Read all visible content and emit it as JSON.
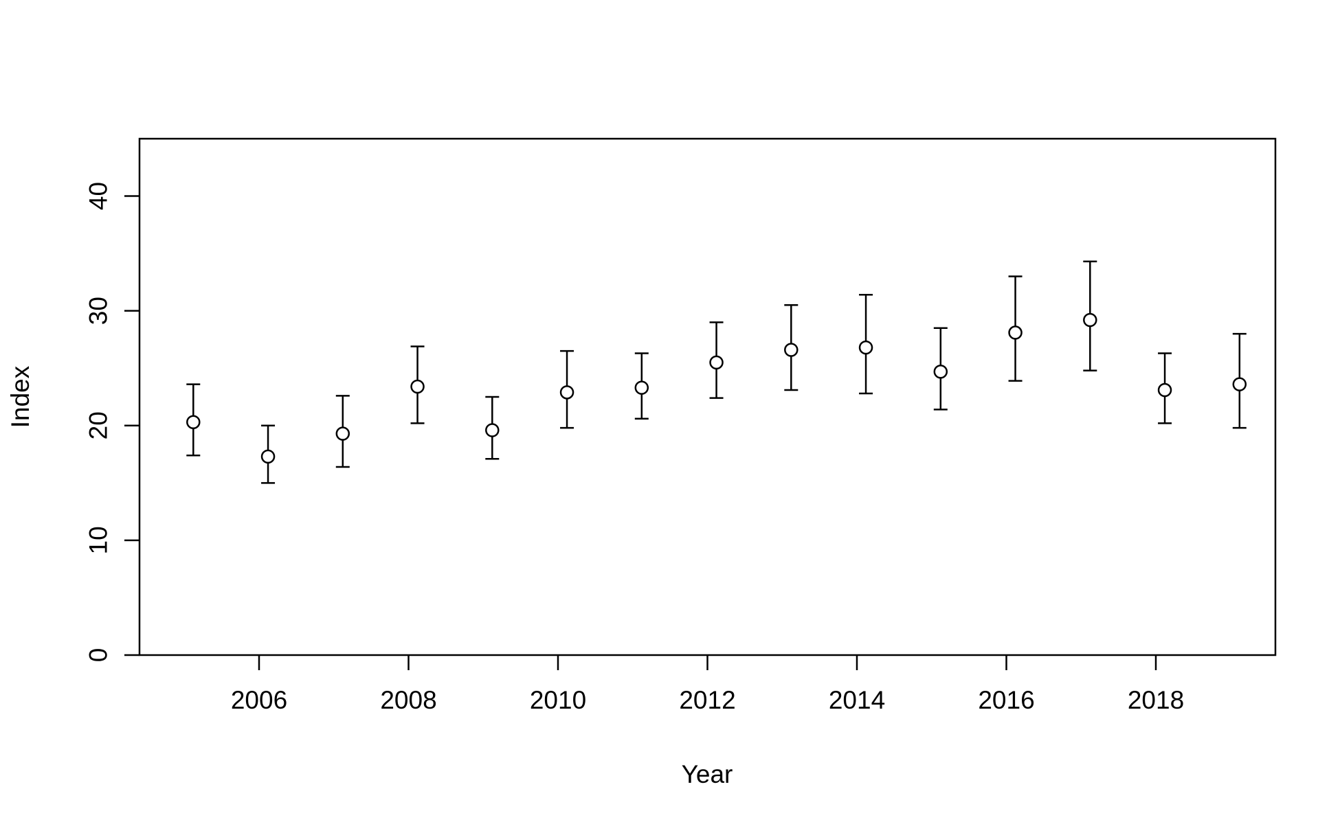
{
  "chart_data": {
    "type": "scatter",
    "title": "",
    "xlabel": "Year",
    "ylabel": "Index",
    "xlim": [
      2004.4,
      2019.6
    ],
    "ylim": [
      0,
      45
    ],
    "x_ticks": [
      "2006",
      "2008",
      "2010",
      "2012",
      "2014",
      "2016",
      "2018"
    ],
    "y_ticks": [
      "0",
      "10",
      "20",
      "30",
      "40"
    ],
    "grid": false,
    "legend": "none",
    "series": [
      {
        "points": [
          {
            "x": 2005,
            "y": 20.3,
            "lower": 17.4,
            "upper": 23.6
          },
          {
            "x": 2006,
            "y": 17.3,
            "lower": 15.0,
            "upper": 20.0
          },
          {
            "x": 2007,
            "y": 19.3,
            "lower": 16.4,
            "upper": 22.6
          },
          {
            "x": 2008,
            "y": 23.4,
            "lower": 20.2,
            "upper": 26.9
          },
          {
            "x": 2009,
            "y": 19.6,
            "lower": 17.1,
            "upper": 22.5
          },
          {
            "x": 2010,
            "y": 22.9,
            "lower": 19.8,
            "upper": 26.5
          },
          {
            "x": 2011,
            "y": 23.3,
            "lower": 20.6,
            "upper": 26.3
          },
          {
            "x": 2012,
            "y": 25.5,
            "lower": 22.4,
            "upper": 29.0
          },
          {
            "x": 2013,
            "y": 26.6,
            "lower": 23.1,
            "upper": 30.5
          },
          {
            "x": 2014,
            "y": 26.8,
            "lower": 22.8,
            "upper": 31.4
          },
          {
            "x": 2015,
            "y": 24.7,
            "lower": 21.4,
            "upper": 28.5
          },
          {
            "x": 2016,
            "y": 28.1,
            "lower": 23.9,
            "upper": 33.0
          },
          {
            "x": 2017,
            "y": 29.2,
            "lower": 24.8,
            "upper": 34.3
          },
          {
            "x": 2018,
            "y": 23.1,
            "lower": 20.2,
            "upper": 26.3
          },
          {
            "x": 2019,
            "y": 23.6,
            "lower": 19.8,
            "upper": 28.0
          }
        ]
      }
    ],
    "colors": {
      "marker_stroke": "#000000",
      "marker_fill": "#ffffff",
      "axis": "#000000"
    }
  }
}
